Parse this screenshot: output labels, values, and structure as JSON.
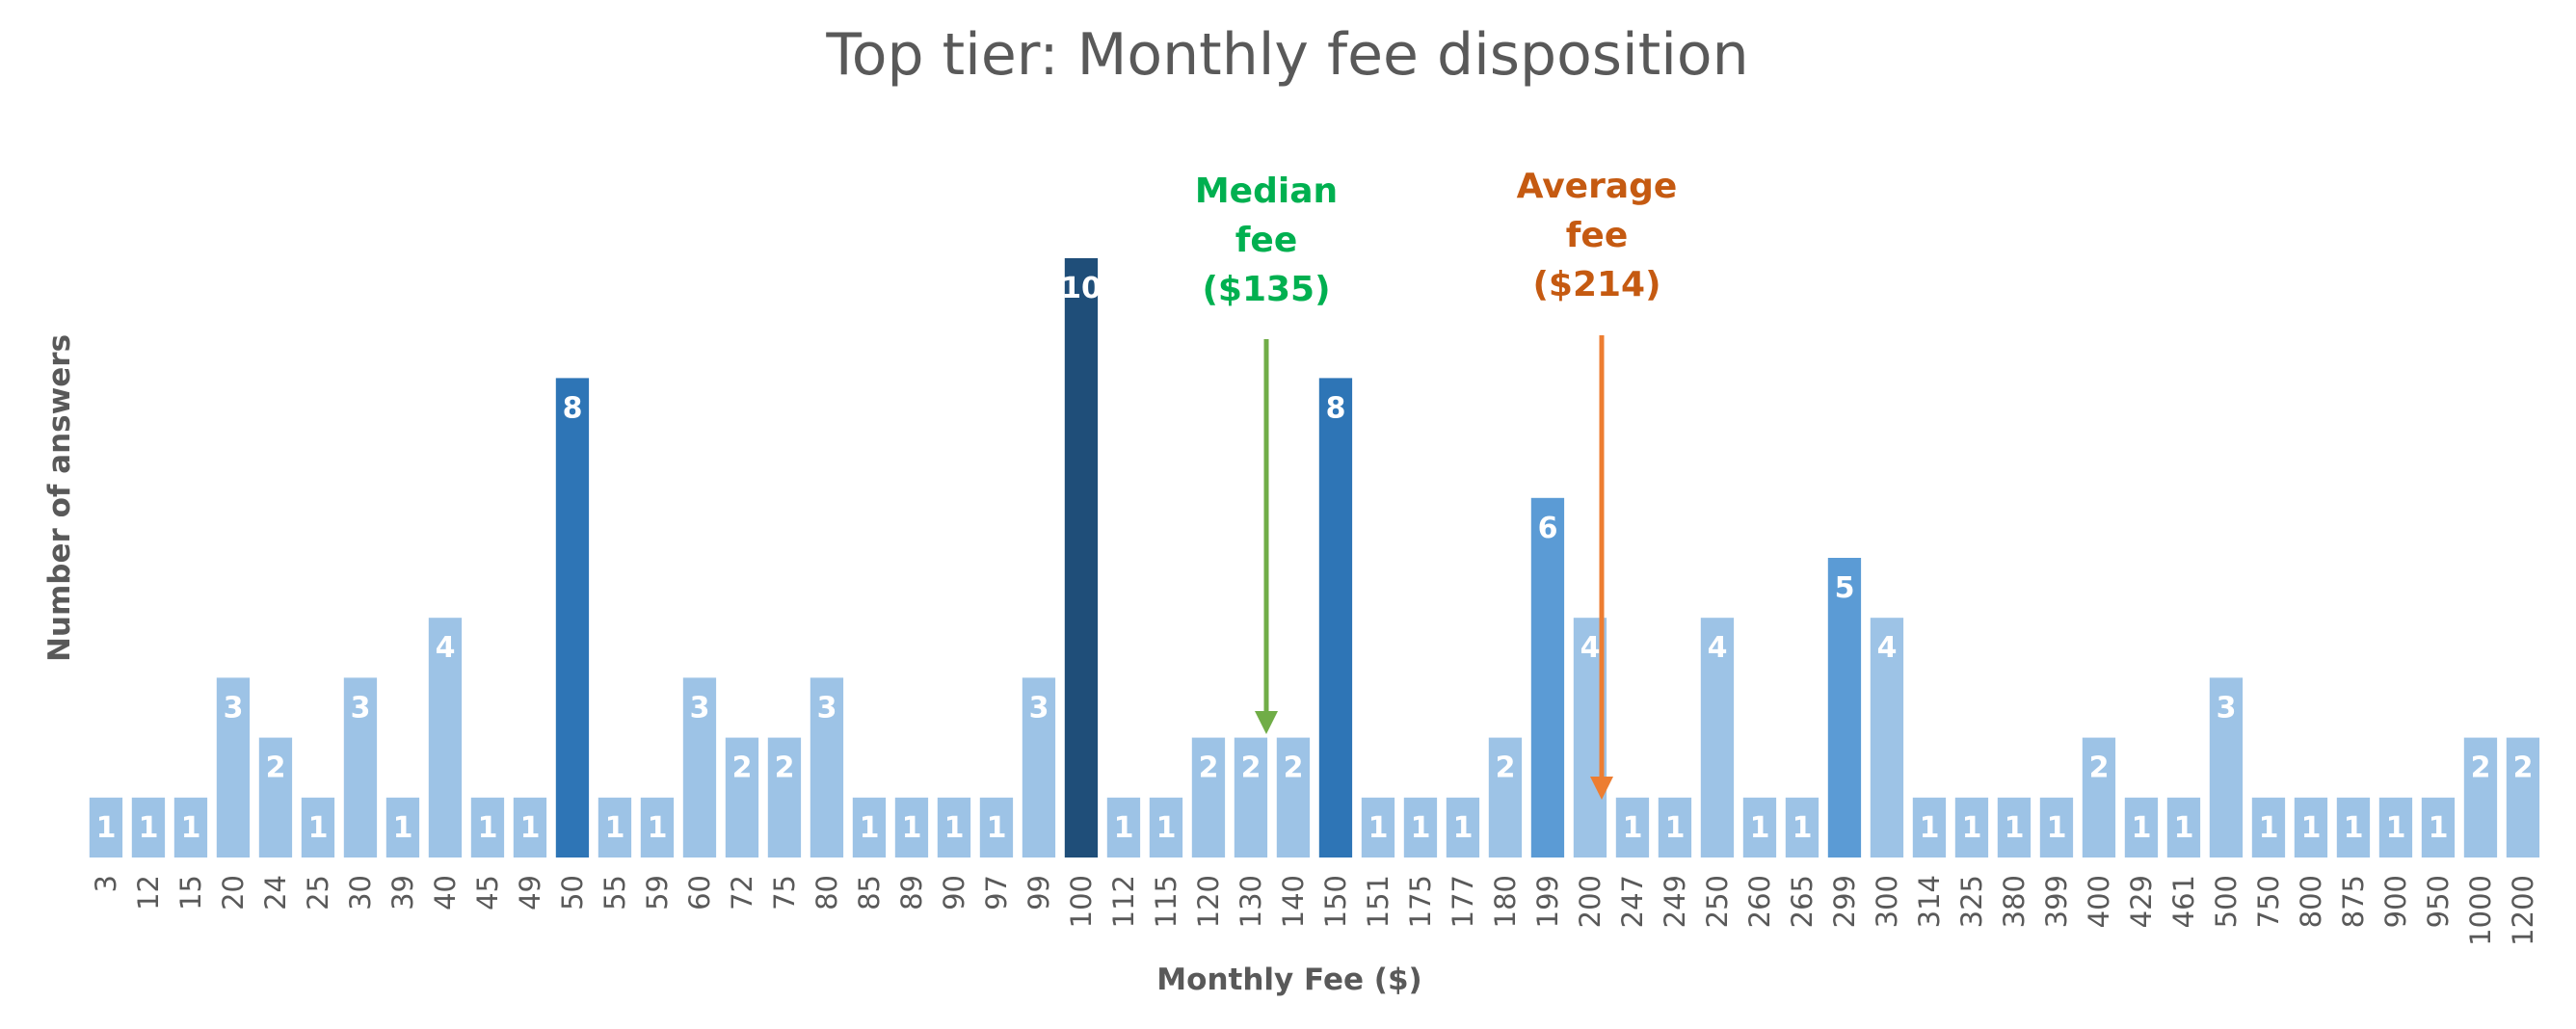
{
  "chart_data": {
    "type": "bar",
    "title": "Top tier: Monthly fee disposition",
    "xlabel": "Monthly Fee ($)",
    "ylabel": "Number of answers",
    "ylim": [
      0,
      10
    ],
    "grid": false,
    "legend": "none",
    "categories": [
      "3",
      "12",
      "15",
      "20",
      "24",
      "25",
      "30",
      "39",
      "40",
      "45",
      "49",
      "50",
      "55",
      "59",
      "60",
      "72",
      "75",
      "80",
      "85",
      "89",
      "90",
      "97",
      "99",
      "100",
      "112",
      "115",
      "120",
      "130",
      "140",
      "150",
      "151",
      "175",
      "177",
      "180",
      "199",
      "200",
      "247",
      "249",
      "250",
      "260",
      "265",
      "299",
      "300",
      "314",
      "325",
      "380",
      "399",
      "400",
      "429",
      "461",
      "500",
      "750",
      "800",
      "875",
      "900",
      "950",
      "1000",
      "1200"
    ],
    "values": [
      1,
      1,
      1,
      3,
      2,
      1,
      3,
      1,
      4,
      1,
      1,
      8,
      1,
      1,
      3,
      2,
      2,
      3,
      1,
      1,
      1,
      1,
      3,
      10,
      1,
      1,
      2,
      2,
      2,
      8,
      1,
      1,
      1,
      2,
      6,
      4,
      1,
      1,
      4,
      1,
      1,
      5,
      4,
      1,
      1,
      1,
      1,
      2,
      1,
      1,
      3,
      1,
      1,
      1,
      1,
      1,
      2,
      2
    ],
    "colors": {
      "1": "#9dc3e6",
      "2": "#9dc3e6",
      "3": "#9dc3e6",
      "4": "#9dc3e6",
      "5": "#5b9bd5",
      "6": "#5b9bd5",
      "8": "#2e75b6",
      "10": "#1f4e79"
    },
    "annotations": [
      {
        "lines": [
          "Median",
          "fee",
          "($135)"
        ],
        "category": "130",
        "color": "#00b050",
        "arrow_color": "#70ad47"
      },
      {
        "lines": [
          "Average",
          "fee",
          "($214)"
        ],
        "category": "200",
        "color": "#c55a11",
        "arrow_color": "#ed7d31"
      }
    ]
  }
}
